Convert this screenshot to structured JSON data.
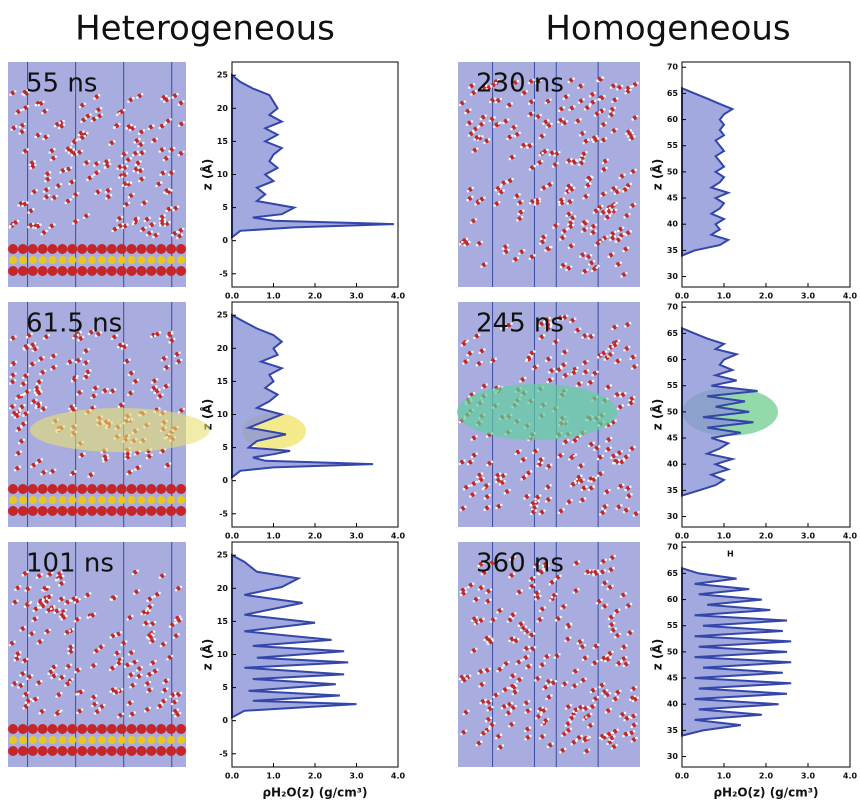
{
  "columns": [
    {
      "title": "Heterogeneous"
    },
    {
      "title": "Homogeneous"
    }
  ],
  "chart_data": [
    {
      "type": "area",
      "label": "55 ns",
      "color": "#3446a8",
      "fill": "#8a93d6",
      "xlabel": "z (Å)",
      "x": [
        0.5,
        1.5,
        2,
        2.5,
        3,
        3.5,
        4,
        5,
        6,
        7,
        8,
        9,
        10,
        11,
        12,
        13,
        14,
        15,
        16,
        17,
        18,
        19,
        20,
        21,
        22,
        23,
        24,
        25
      ],
      "values": [
        0,
        0.2,
        1.5,
        3.9,
        1.0,
        0.5,
        1.2,
        1.5,
        0.6,
        0.8,
        0.6,
        1.0,
        0.8,
        1.1,
        0.9,
        1.0,
        1.2,
        0.8,
        1.1,
        0.8,
        1.2,
        0.9,
        1.1,
        1.0,
        0.9,
        0.5,
        0.2,
        0
      ],
      "xlim": [
        -7,
        27
      ],
      "xticks": [
        -5,
        0,
        5,
        10,
        15,
        20,
        25
      ],
      "ylim": [
        0,
        4
      ],
      "yticks": [
        {
          "value": 0,
          "label": "0.0"
        },
        {
          "value": 1,
          "label": "1.0"
        },
        {
          "value": 2,
          "label": "2.0"
        },
        {
          "value": 3,
          "label": "3.0"
        },
        {
          "value": 4,
          "label": "4.0"
        }
      ]
    },
    {
      "type": "area",
      "label": "230 ns",
      "color": "#3446a8",
      "fill": "#8a93d6",
      "xlabel": "z (Å)",
      "x": [
        34,
        35,
        36,
        37,
        38,
        39,
        40,
        41,
        42,
        43,
        44,
        45,
        46,
        47,
        48,
        49,
        50,
        51,
        52,
        53,
        54,
        55,
        56,
        57,
        58,
        59,
        60,
        61,
        62,
        63,
        64,
        65,
        66
      ],
      "values": [
        0,
        0.3,
        0.9,
        1.1,
        0.7,
        0.9,
        0.8,
        1.0,
        0.7,
        0.9,
        1.0,
        0.8,
        1.1,
        0.7,
        0.9,
        1.0,
        0.8,
        1.0,
        0.9,
        0.8,
        1.0,
        0.9,
        0.8,
        1.0,
        0.9,
        1.0,
        0.9,
        1.0,
        1.2,
        0.9,
        0.6,
        0.3,
        0
      ],
      "xlim": [
        28,
        71
      ],
      "xticks": [
        30,
        35,
        40,
        45,
        50,
        55,
        60,
        65,
        70
      ],
      "ylim": [
        0,
        4
      ],
      "yticks": [
        {
          "value": 0,
          "label": "0.0"
        },
        {
          "value": 1,
          "label": "1.0"
        },
        {
          "value": 2,
          "label": "2.0"
        },
        {
          "value": 3,
          "label": "3.0"
        },
        {
          "value": 4,
          "label": "4.0"
        }
      ]
    },
    {
      "type": "area",
      "label": "61.5 ns",
      "color": "#3446a8",
      "fill": "#8a93d6",
      "xlabel": "z (Å)",
      "x": [
        0.5,
        1.5,
        2,
        2.5,
        3,
        3.5,
        4,
        4.5,
        5,
        6,
        7,
        8,
        9,
        10,
        11,
        12,
        13,
        14,
        15,
        16,
        17,
        18,
        19,
        20,
        21,
        22,
        23,
        24,
        25
      ],
      "values": [
        0,
        0.2,
        1.0,
        3.4,
        0.8,
        0.5,
        1.0,
        1.4,
        0.4,
        0.6,
        1.3,
        0.4,
        0.8,
        1.2,
        0.6,
        0.9,
        1.1,
        0.8,
        1.0,
        0.9,
        1.2,
        0.7,
        1.1,
        1.0,
        1.2,
        1.0,
        0.6,
        0.3,
        0
      ],
      "xlim": [
        -7,
        27
      ],
      "xticks": [
        -5,
        0,
        5,
        10,
        15,
        20,
        25
      ],
      "ylim": [
        0,
        4
      ],
      "yticks": [
        {
          "value": 0,
          "label": "0.0"
        },
        {
          "value": 1,
          "label": "1.0"
        },
        {
          "value": 2,
          "label": "2.0"
        },
        {
          "value": 3,
          "label": "3.0"
        },
        {
          "value": 4,
          "label": "4.0"
        }
      ]
    },
    {
      "type": "area",
      "label": "245 ns",
      "color": "#3446a8",
      "fill": "#8a93d6",
      "xlabel": "z (Å)",
      "x": [
        34,
        35,
        36,
        37,
        38,
        39,
        40,
        41,
        42,
        43,
        44,
        45,
        46,
        47,
        48,
        49,
        50,
        51,
        52,
        53,
        54,
        55,
        56,
        57,
        58,
        59,
        60,
        61,
        62,
        63,
        64,
        65,
        66
      ],
      "values": [
        0,
        0.4,
        0.8,
        1.0,
        0.7,
        1.1,
        0.8,
        1.2,
        0.6,
        0.9,
        1.1,
        0.7,
        1.4,
        0.6,
        1.7,
        0.5,
        1.6,
        0.8,
        1.5,
        0.6,
        1.8,
        0.7,
        1.3,
        0.8,
        1.2,
        0.9,
        1.0,
        1.3,
        0.8,
        1.0,
        0.6,
        0.3,
        0
      ],
      "xlim": [
        28,
        71
      ],
      "xticks": [
        30,
        35,
        40,
        45,
        50,
        55,
        60,
        65,
        70
      ],
      "ylim": [
        0,
        4
      ],
      "yticks": [
        {
          "value": 0,
          "label": "0.0"
        },
        {
          "value": 1,
          "label": "1.0"
        },
        {
          "value": 2,
          "label": "2.0"
        },
        {
          "value": 3,
          "label": "3.0"
        },
        {
          "value": 4,
          "label": "4.0"
        }
      ]
    },
    {
      "type": "area",
      "label": "101 ns",
      "color": "#3446a8",
      "fill": "#8a93d6",
      "xlabel": "z (Å)",
      "ylabel": "ρH₂O(z) (g/cm³)",
      "x": [
        0.5,
        1.5,
        2.5,
        3,
        3.8,
        4.5,
        5.5,
        6.3,
        7,
        8,
        8.8,
        9.5,
        10.5,
        11.3,
        12.2,
        13.5,
        14.8,
        16,
        17.8,
        19,
        20.2,
        21.5,
        22.5,
        24,
        25
      ],
      "values": [
        0,
        0.3,
        3.0,
        0.5,
        2.6,
        0.4,
        2.5,
        0.5,
        2.7,
        0.3,
        2.8,
        0.6,
        2.7,
        0.5,
        2.4,
        0.3,
        2.0,
        0.3,
        1.7,
        0.3,
        1.2,
        1.6,
        0.6,
        0.3,
        0
      ],
      "xlim": [
        -7,
        27
      ],
      "xticks": [
        -5,
        0,
        5,
        10,
        15,
        20,
        25
      ],
      "ylim": [
        0,
        4
      ],
      "yticks": [
        {
          "value": 0,
          "label": "0.0"
        },
        {
          "value": 1,
          "label": "1.0"
        },
        {
          "value": 2,
          "label": "2.0"
        },
        {
          "value": 3,
          "label": "3.0"
        },
        {
          "value": 4,
          "label": "4.0"
        }
      ]
    },
    {
      "type": "area",
      "label": "360 ns",
      "color": "#3446a8",
      "fill": "#8a93d6",
      "xlabel": "z (Å)",
      "ylabel": "ρH₂O(z) (g/cm³)",
      "annotation": "H",
      "x": [
        34,
        35,
        36,
        37,
        38,
        39,
        40,
        41,
        42,
        43,
        44,
        45,
        46,
        47,
        48,
        49,
        50,
        51,
        52,
        53,
        54,
        55,
        56,
        57,
        58,
        59,
        60,
        61,
        62,
        63,
        64,
        65,
        66
      ],
      "values": [
        0,
        0.5,
        1.4,
        0.3,
        1.9,
        0.4,
        2.3,
        0.3,
        2.5,
        0.4,
        2.6,
        0.3,
        2.4,
        0.5,
        2.6,
        0.3,
        2.5,
        0.4,
        2.6,
        0.3,
        2.4,
        0.5,
        2.5,
        0.3,
        2.1,
        0.6,
        1.9,
        0.4,
        1.6,
        0.3,
        1.3,
        0.4,
        0
      ],
      "xlim": [
        28,
        71
      ],
      "xticks": [
        30,
        35,
        40,
        45,
        50,
        55,
        60,
        65,
        70
      ],
      "ylim": [
        0,
        4
      ],
      "yticks": [
        {
          "value": 0,
          "label": "0.0"
        },
        {
          "value": 1,
          "label": "1.0"
        },
        {
          "value": 2,
          "label": "2.0"
        },
        {
          "value": 3,
          "label": "3.0"
        },
        {
          "value": 4,
          "label": "4.0"
        }
      ]
    }
  ]
}
